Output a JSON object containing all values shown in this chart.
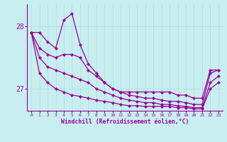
{
  "xlabel": "Windchill (Refroidissement éolien,°C)",
  "ylabel": "",
  "bg_color": "#c8eef0",
  "grid_color": "#aadddd",
  "line_color": "#990099",
  "xlim": [
    -0.5,
    23.5
  ],
  "ylim": [
    26.65,
    28.35
  ],
  "yticks": [
    27,
    28
  ],
  "xticks": [
    0,
    1,
    2,
    3,
    4,
    5,
    6,
    7,
    8,
    9,
    10,
    11,
    12,
    13,
    14,
    15,
    16,
    17,
    18,
    19,
    20,
    21,
    22,
    23
  ],
  "series": [
    [
      27.9,
      27.9,
      27.75,
      27.65,
      28.1,
      28.2,
      27.7,
      27.4,
      27.25,
      27.1,
      27.0,
      26.95,
      26.95,
      26.95,
      26.95,
      26.95,
      26.95,
      26.95,
      26.9,
      26.9,
      26.85,
      26.85,
      27.3,
      27.3
    ],
    [
      27.9,
      27.65,
      27.55,
      27.5,
      27.55,
      27.55,
      27.5,
      27.3,
      27.2,
      27.1,
      27.0,
      26.95,
      26.9,
      26.88,
      26.85,
      26.85,
      26.82,
      26.8,
      26.8,
      26.78,
      26.75,
      26.75,
      27.25,
      27.3
    ],
    [
      27.9,
      27.5,
      27.35,
      27.3,
      27.25,
      27.2,
      27.15,
      27.1,
      27.0,
      26.95,
      26.9,
      26.85,
      26.82,
      26.8,
      26.78,
      26.78,
      26.75,
      26.75,
      26.73,
      26.72,
      26.7,
      26.7,
      27.1,
      27.2
    ],
    [
      27.9,
      27.25,
      27.1,
      27.0,
      26.95,
      26.9,
      26.88,
      26.85,
      26.82,
      26.8,
      26.78,
      26.75,
      26.73,
      26.73,
      26.72,
      26.72,
      26.72,
      26.72,
      26.7,
      26.7,
      26.68,
      26.68,
      27.0,
      27.1
    ]
  ]
}
